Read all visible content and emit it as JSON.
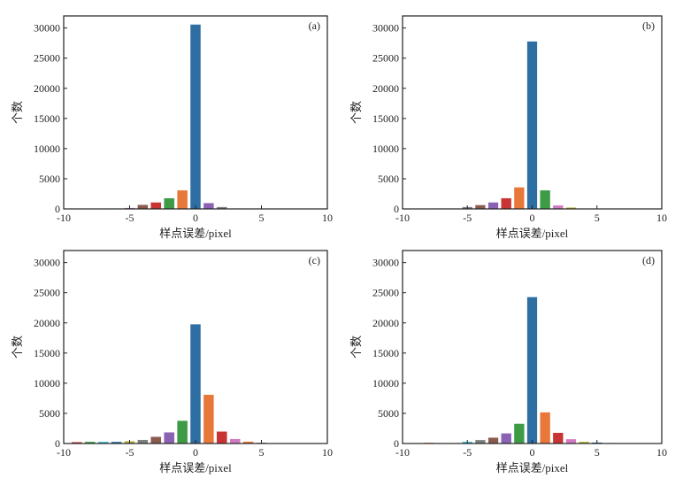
{
  "palette": {
    "blue": "#2e6ea3",
    "orange": "#e8783a",
    "green": "#3d9a45",
    "red": "#c83333",
    "purple": "#8a62b4",
    "brown": "#8a5a4e",
    "pink": "#d07ac0",
    "gray": "#7f7f7f",
    "olive": "#b0b032",
    "cyan": "#2fb6c8"
  },
  "chart_data": [
    {
      "type": "bar",
      "panel_label": "(a)",
      "xlabel": "样点误差/pixel",
      "ylabel": "个数",
      "xlim": [
        -10,
        10
      ],
      "ylim": [
        0,
        32000
      ],
      "xticks": [
        "-10",
        "-5",
        "0",
        "5",
        "10"
      ],
      "yticks": [
        "0",
        "5000",
        "10000",
        "15000",
        "20000",
        "25000",
        "30000"
      ],
      "x": [
        -9,
        -8,
        -7,
        -6,
        -5,
        -4,
        -3,
        -2,
        -1,
        0,
        1,
        2,
        3,
        4
      ],
      "values": [
        50,
        50,
        50,
        80,
        200,
        700,
        1100,
        1800,
        3100,
        30600,
        1000,
        350,
        100,
        50
      ],
      "colors": [
        "red",
        "brown",
        "blue",
        "olive",
        "pink",
        "brown",
        "red",
        "green",
        "orange",
        "blue",
        "purple",
        "gray",
        "cyan",
        "green"
      ]
    },
    {
      "type": "bar",
      "panel_label": "(b)",
      "xlabel": "样点误差/pixel",
      "ylabel": "个数",
      "xlim": [
        -10,
        10
      ],
      "ylim": [
        0,
        32000
      ],
      "xticks": [
        "-10",
        "-5",
        "0",
        "5",
        "10"
      ],
      "yticks": [
        "0",
        "5000",
        "10000",
        "15000",
        "20000",
        "25000",
        "30000"
      ],
      "x": [
        -7,
        -6,
        -5,
        -4,
        -3,
        -2,
        -1,
        0,
        1,
        2,
        3,
        4
      ],
      "values": [
        100,
        100,
        350,
        660,
        1100,
        1800,
        3600,
        27800,
        3100,
        600,
        250,
        50
      ],
      "colors": [
        "cyan",
        "cyan",
        "gray",
        "brown",
        "purple",
        "red",
        "orange",
        "blue",
        "green",
        "pink",
        "olive",
        "brown"
      ]
    },
    {
      "type": "bar",
      "panel_label": "(c)",
      "xlabel": "样点误差/pixel",
      "ylabel": "个数",
      "xlim": [
        -10,
        10
      ],
      "ylim": [
        0,
        32000
      ],
      "xticks": [
        "-10",
        "-5",
        "0",
        "5",
        "10"
      ],
      "yticks": [
        "0",
        "5000",
        "10000",
        "15000",
        "20000",
        "25000",
        "30000"
      ],
      "x": [
        -9,
        -8,
        -7,
        -6,
        -5,
        -4,
        -3,
        -2,
        -1,
        0,
        1,
        2,
        3,
        4,
        5
      ],
      "values": [
        250,
        300,
        300,
        300,
        400,
        630,
        1130,
        1870,
        3800,
        19800,
        8100,
        2000,
        780,
        340,
        150
      ],
      "colors": [
        "red",
        "green",
        "cyan",
        "blue",
        "olive",
        "gray",
        "brown",
        "purple",
        "green",
        "blue",
        "orange",
        "red",
        "pink",
        "orange",
        "purple"
      ]
    },
    {
      "type": "bar",
      "panel_label": "(d)",
      "xlabel": "样点误差/pixel",
      "ylabel": "个数",
      "xlim": [
        -10,
        10
      ],
      "ylim": [
        0,
        32000
      ],
      "xticks": [
        "-10",
        "-5",
        "0",
        "5",
        "10"
      ],
      "yticks": [
        "0",
        "5000",
        "10000",
        "15000",
        "20000",
        "25000",
        "30000"
      ],
      "x": [
        -9,
        -8,
        -7,
        -6,
        -5,
        -4,
        -3,
        -2,
        -1,
        0,
        1,
        2,
        3,
        4,
        5,
        6
      ],
      "values": [
        100,
        150,
        100,
        100,
        300,
        600,
        1000,
        1700,
        3300,
        24300,
        5200,
        1800,
        740,
        300,
        200,
        100
      ],
      "colors": [
        "pink",
        "orange",
        "purple",
        "green",
        "cyan",
        "gray",
        "brown",
        "purple",
        "green",
        "blue",
        "orange",
        "red",
        "pink",
        "olive",
        "blue",
        "brown"
      ]
    }
  ]
}
